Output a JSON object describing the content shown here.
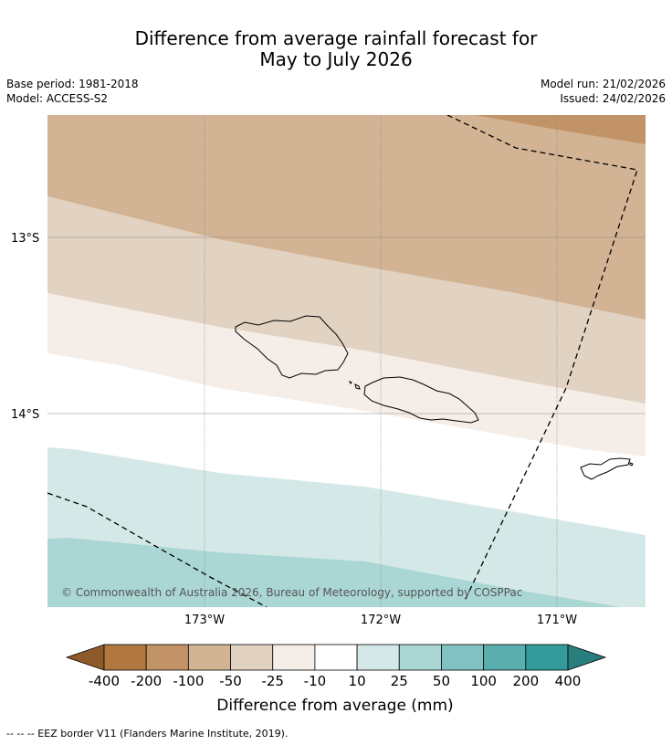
{
  "title_line1": "Difference from average rainfall forecast for",
  "title_line2": "May to July 2026",
  "base_period": "Base period: 1981-2018",
  "model": "Model: ACCESS-S2",
  "model_run": "Model run: 21/02/2026",
  "issued": "Issued: 24/02/2026",
  "lat_labels": [
    "13°S",
    "14°S"
  ],
  "lon_labels": [
    "173°W",
    "172°W",
    "171°W"
  ],
  "copyright": "© Commonwealth of Australia 2026, Bureau of Meteorology, supported by COSPPac",
  "legend": {
    "title": "Difference from average (mm)",
    "ticks": [
      "-400",
      "-200",
      "-100",
      "-50",
      "-25",
      "-10",
      "10",
      "25",
      "50",
      "100",
      "200",
      "400"
    ],
    "colors": [
      "#8f5a2a",
      "#b07840",
      "#c19366",
      "#d2b394",
      "#e2d2c1",
      "#f5ede7",
      "#ffffff",
      "#d4e9e7",
      "#aad6d4",
      "#82c1c1",
      "#5aaeae",
      "#339c9a",
      "#2a7d7d"
    ]
  },
  "footnote": "--  --  -- EEZ border V11 (Flanders Marine Institute, 2019)."
}
